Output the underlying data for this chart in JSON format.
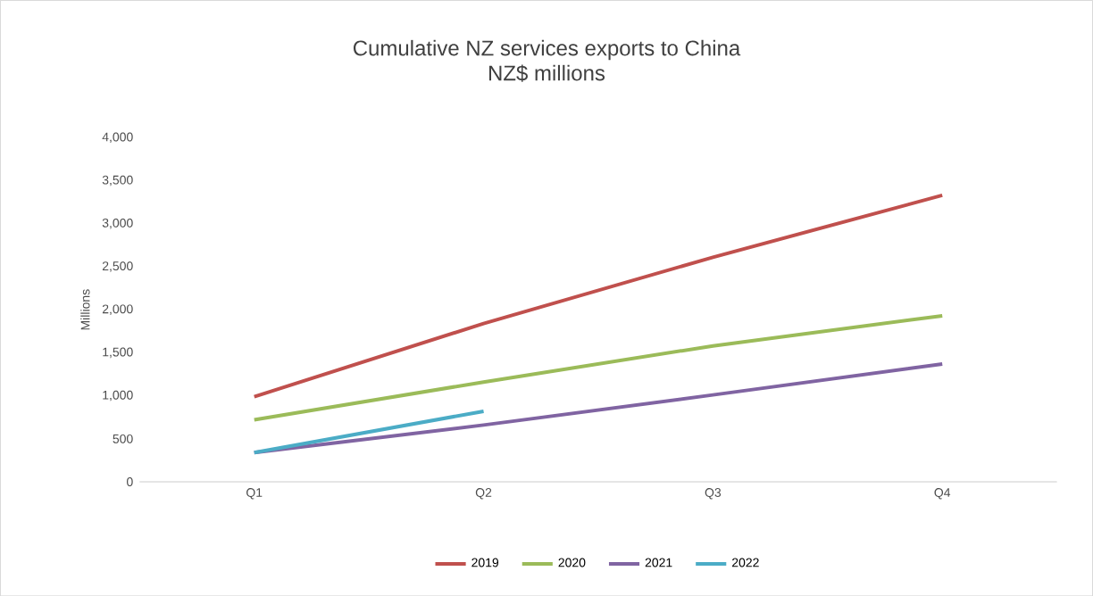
{
  "chart_data": {
    "type": "line",
    "title": "Cumulative NZ services exports to China",
    "subtitle": "NZ$ millions",
    "ylabel": "Millions",
    "categories": [
      "Q1",
      "Q2",
      "Q3",
      "Q4"
    ],
    "series": [
      {
        "name": "2019",
        "color": "#c0504d",
        "values": [
          990,
          1840,
          2610,
          3330
        ]
      },
      {
        "name": "2020",
        "color": "#9bbb59",
        "values": [
          720,
          1160,
          1580,
          1930
        ]
      },
      {
        "name": "2021",
        "color": "#8064a2",
        "values": [
          340,
          660,
          1010,
          1370
        ]
      },
      {
        "name": "2022",
        "color": "#4bacc6",
        "values": [
          340,
          820,
          null,
          null
        ]
      }
    ],
    "ylim": [
      0,
      4000
    ],
    "yticks": [
      0,
      500,
      {
        "value": 1000,
        "label": "1,000"
      },
      {
        "value": 1500,
        "label": "1,500"
      },
      {
        "value": 2000,
        "label": "2,000"
      },
      {
        "value": 2500,
        "label": "2,500"
      },
      {
        "value": 3000,
        "label": "3,000"
      },
      {
        "value": 3500,
        "label": "3,500"
      },
      {
        "value": 4000,
        "label": "4,000"
      }
    ],
    "legend": "bottom",
    "marker": "none",
    "line_style": "solid"
  }
}
